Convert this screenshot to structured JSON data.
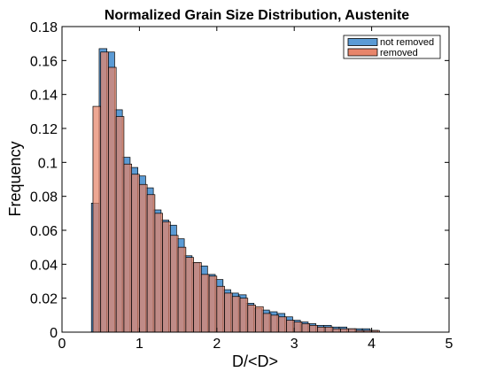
{
  "chart_data": {
    "type": "bar",
    "title": "Normalized Grain Size Distribution, Austenite",
    "xlabel": "D/<D>",
    "ylabel": "Frequency",
    "xlim": [
      0,
      5
    ],
    "ylim": [
      0,
      0.18
    ],
    "xticks": [
      "0",
      "1",
      "2",
      "3",
      "4",
      "5"
    ],
    "yticks": [
      "0",
      "0.02",
      "0.04",
      "0.06",
      "0.08",
      "0.1",
      "0.12",
      "0.14",
      "0.16",
      "0.18"
    ],
    "grid": false,
    "legend_position": "top-right",
    "series": [
      {
        "name": "not removed",
        "color": "#5b9bd5",
        "bin_start": 0.38,
        "bin_width": 0.1,
        "values": [
          0.076,
          0.167,
          0.165,
          0.131,
          0.103,
          0.097,
          0.092,
          0.085,
          0.072,
          0.066,
          0.063,
          0.055,
          0.045,
          0.041,
          0.039,
          0.034,
          0.031,
          0.025,
          0.023,
          0.022,
          0.017,
          0.014,
          0.013,
          0.012,
          0.011,
          0.009,
          0.007,
          0.006,
          0.005,
          0.004,
          0.004,
          0.003,
          0.003,
          0.002,
          0.002,
          0.002,
          0.001
        ]
      },
      {
        "name": "removed",
        "color": "#e8856a",
        "bin_start": 0.4,
        "bin_width": 0.1,
        "values": [
          0.133,
          0.165,
          0.156,
          0.127,
          0.099,
          0.093,
          0.087,
          0.081,
          0.07,
          0.065,
          0.057,
          0.05,
          0.044,
          0.041,
          0.034,
          0.033,
          0.027,
          0.023,
          0.021,
          0.02,
          0.016,
          0.015,
          0.011,
          0.01,
          0.009,
          0.007,
          0.006,
          0.005,
          0.004,
          0.003,
          0.003,
          0.002,
          0.002,
          0.002,
          0.001,
          0.001,
          0.001
        ]
      }
    ]
  }
}
